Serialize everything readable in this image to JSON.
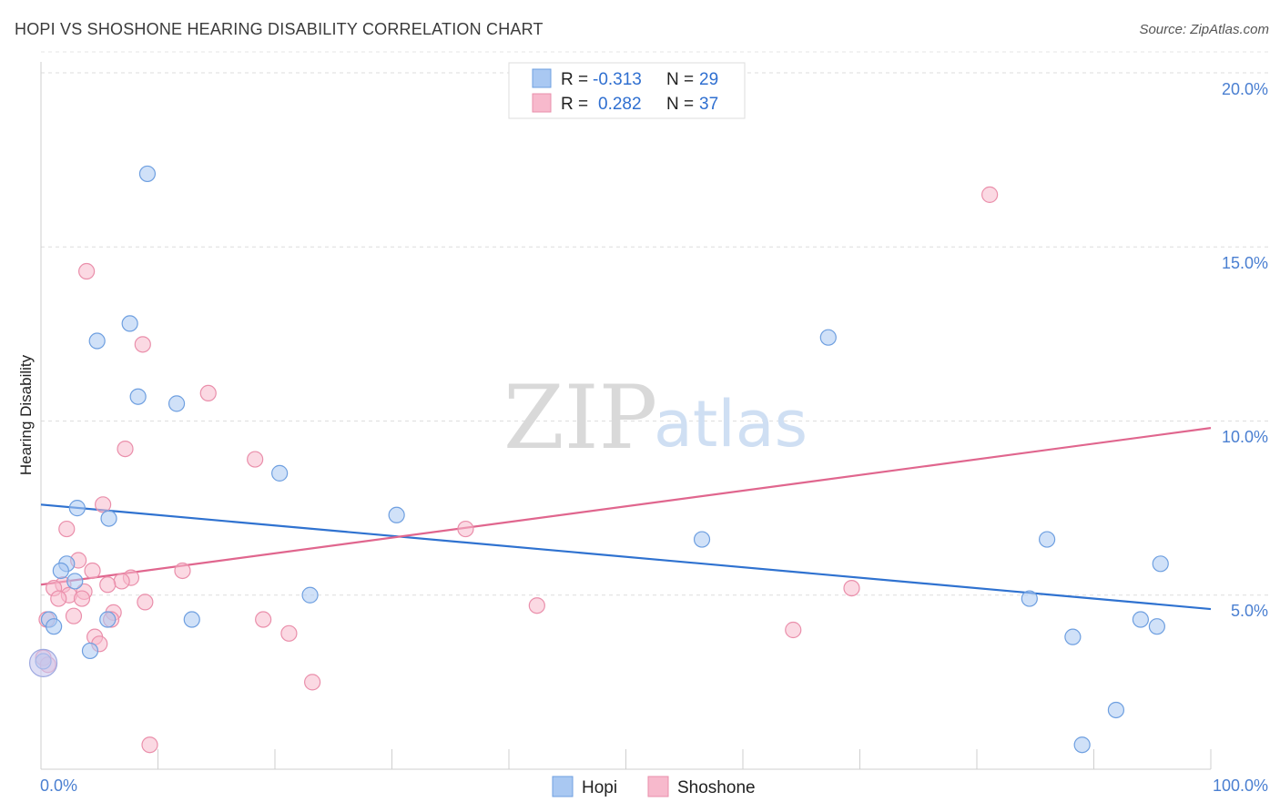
{
  "header": {
    "title": "HOPI VS SHOSHONE HEARING DISABILITY CORRELATION CHART",
    "source": "Source: ZipAtlas.com"
  },
  "watermark": {
    "zip": "ZIP",
    "atlas": "atlas"
  },
  "legend": {
    "rows": [
      {
        "r_label": "R =",
        "r_value": "-0.313",
        "n_label": "N =",
        "n_value": "29",
        "color": "#a9c8f2"
      },
      {
        "r_label": "R =",
        "r_value": "0.282",
        "n_label": "N =",
        "n_value": "37",
        "color": "#f7b9cc"
      }
    ]
  },
  "chart_data": {
    "type": "scatter",
    "title": "HOPI VS SHOSHONE HEARING DISABILITY CORRELATION CHART",
    "xlabel": "",
    "ylabel": "Hearing Disability",
    "xlim": [
      0,
      100
    ],
    "ylim": [
      0,
      20.6
    ],
    "x_tick_labels": [
      "0.0%",
      "100.0%"
    ],
    "y_ticks": [
      5,
      10,
      15,
      20
    ],
    "y_tick_labels": [
      "5.0%",
      "10.0%",
      "15.0%",
      "20.0%"
    ],
    "legend_position": "top-center",
    "series": [
      {
        "name": "Hopi",
        "color": "#a9c8f2",
        "stroke": "#6e9fe0",
        "line_color": "#2f72d0",
        "trend": {
          "x": [
            0,
            100
          ],
          "y": [
            7.6,
            4.6
          ]
        },
        "points": [
          {
            "x": 9.1,
            "y": 17.1
          },
          {
            "x": 7.6,
            "y": 12.8
          },
          {
            "x": 4.8,
            "y": 12.3
          },
          {
            "x": 8.3,
            "y": 10.7
          },
          {
            "x": 11.6,
            "y": 10.5
          },
          {
            "x": 20.4,
            "y": 8.5
          },
          {
            "x": 3.1,
            "y": 7.5
          },
          {
            "x": 5.8,
            "y": 7.2
          },
          {
            "x": 30.4,
            "y": 7.3
          },
          {
            "x": 2.2,
            "y": 5.9
          },
          {
            "x": 1.7,
            "y": 5.7
          },
          {
            "x": 2.9,
            "y": 5.4
          },
          {
            "x": 23.0,
            "y": 5.0
          },
          {
            "x": 0.7,
            "y": 4.3
          },
          {
            "x": 1.1,
            "y": 4.1
          },
          {
            "x": 5.7,
            "y": 4.3
          },
          {
            "x": 12.9,
            "y": 4.3
          },
          {
            "x": 4.2,
            "y": 3.4
          },
          {
            "x": 0.2,
            "y": 3.1
          },
          {
            "x": 67.3,
            "y": 12.4
          },
          {
            "x": 56.5,
            "y": 6.6
          },
          {
            "x": 86.0,
            "y": 6.6
          },
          {
            "x": 95.7,
            "y": 5.9
          },
          {
            "x": 84.5,
            "y": 4.9
          },
          {
            "x": 94.0,
            "y": 4.3
          },
          {
            "x": 95.4,
            "y": 4.1
          },
          {
            "x": 88.2,
            "y": 3.8
          },
          {
            "x": 91.9,
            "y": 1.7
          },
          {
            "x": 89.0,
            "y": 0.7
          }
        ]
      },
      {
        "name": "Shoshone",
        "color": "#f7b9cc",
        "stroke": "#ea8fab",
        "line_color": "#e0668e",
        "trend": {
          "x": [
            0,
            100
          ],
          "y": [
            5.3,
            9.8
          ]
        },
        "points": [
          {
            "x": 3.9,
            "y": 14.3
          },
          {
            "x": 8.7,
            "y": 12.2
          },
          {
            "x": 14.3,
            "y": 10.8
          },
          {
            "x": 7.2,
            "y": 9.2
          },
          {
            "x": 18.3,
            "y": 8.9
          },
          {
            "x": 5.3,
            "y": 7.6
          },
          {
            "x": 2.2,
            "y": 6.9
          },
          {
            "x": 36.3,
            "y": 6.9
          },
          {
            "x": 3.2,
            "y": 6.0
          },
          {
            "x": 4.4,
            "y": 5.7
          },
          {
            "x": 12.1,
            "y": 5.7
          },
          {
            "x": 7.7,
            "y": 5.5
          },
          {
            "x": 6.9,
            "y": 5.4
          },
          {
            "x": 5.7,
            "y": 5.3
          },
          {
            "x": 1.9,
            "y": 5.3
          },
          {
            "x": 1.1,
            "y": 5.2
          },
          {
            "x": 3.7,
            "y": 5.1
          },
          {
            "x": 2.4,
            "y": 5.0
          },
          {
            "x": 1.5,
            "y": 4.9
          },
          {
            "x": 3.5,
            "y": 4.9
          },
          {
            "x": 8.9,
            "y": 4.8
          },
          {
            "x": 42.4,
            "y": 4.7
          },
          {
            "x": 6.2,
            "y": 4.5
          },
          {
            "x": 2.8,
            "y": 4.4
          },
          {
            "x": 0.5,
            "y": 4.3
          },
          {
            "x": 6.0,
            "y": 4.3
          },
          {
            "x": 19.0,
            "y": 4.3
          },
          {
            "x": 21.2,
            "y": 3.9
          },
          {
            "x": 4.6,
            "y": 3.8
          },
          {
            "x": 5.0,
            "y": 3.6
          },
          {
            "x": 0.2,
            "y": 3.2
          },
          {
            "x": 23.2,
            "y": 2.5
          },
          {
            "x": 9.3,
            "y": 0.7
          },
          {
            "x": 64.3,
            "y": 4.0
          },
          {
            "x": 69.3,
            "y": 5.2
          },
          {
            "x": 81.1,
            "y": 16.5
          },
          {
            "x": 0.6,
            "y": 3.0
          }
        ]
      }
    ]
  }
}
